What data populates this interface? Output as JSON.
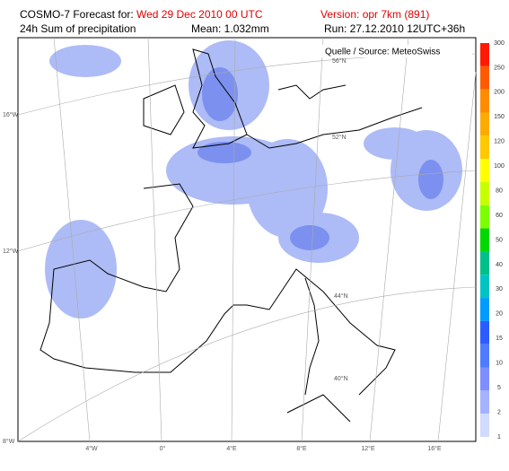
{
  "header": {
    "title_prefix": "COSMO-7 Forecast for:",
    "valid_time": "Wed 29 Dec 2010 00 UTC",
    "version": "Version: opr 7km (891)",
    "field": "24h Sum of precipitation",
    "mean": "Mean: 1.032mm",
    "run": "Run: 27.12.2010 12UTC+36h"
  },
  "map": {
    "source": "Quelle / Source: MeteoSwiss",
    "lon_labels_left": [
      "16°W",
      "12°W",
      "8°W"
    ],
    "lon_labels_bottom": [
      "4°W",
      "0°",
      "4°E",
      "8°E",
      "12°E",
      "16°E"
    ],
    "lat_labels": [
      "56°N",
      "52°N",
      "44°N",
      "40°N"
    ]
  },
  "legend": {
    "levels": [
      300,
      250,
      200,
      150,
      120,
      100,
      80,
      60,
      50,
      40,
      30,
      20,
      15,
      10,
      5,
      2,
      1
    ],
    "colors": [
      "#ff1a00",
      "#ff5a00",
      "#ff8c00",
      "#ffaa00",
      "#ffc800",
      "#ffff00",
      "#c8ff00",
      "#7cff00",
      "#00d800",
      "#00c08a",
      "#00c4c4",
      "#009cff",
      "#2c5cff",
      "#4f7cff",
      "#7e8eff",
      "#a4b2ff",
      "#d2daff"
    ]
  }
}
